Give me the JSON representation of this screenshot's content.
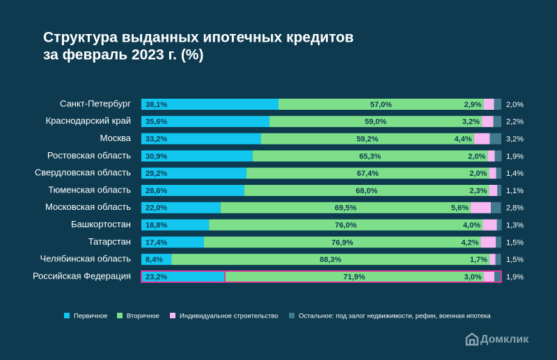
{
  "chart_data": {
    "type": "stacked-bar-horizontal",
    "title": [
      "Структура выданных ипотечных кредитов",
      "за февраль 2023 г. (%)"
    ],
    "categories": [
      "Санкт-Петербург",
      "Краснодарский край",
      "Москва",
      "Ростовская область",
      "Свердловская область",
      "Тюменская область",
      "Московская область",
      "Башкортостан",
      "Татарстан",
      "Челябинская область",
      "Российская Федерация"
    ],
    "xlim": [
      0,
      100
    ],
    "legend": "bottom",
    "series": [
      {
        "name": "Первичное",
        "color": "#12c6f0",
        "values": [
          38.1,
          35.6,
          33.2,
          30.9,
          29.2,
          28.6,
          22.0,
          18.8,
          17.4,
          8.4,
          23.2
        ],
        "value_labels": [
          "38,1%",
          "35,6%",
          "33,2%",
          "30,9%",
          "29,2%",
          "28,6%",
          "22,0%",
          "18,8%",
          "17,4%",
          "8,4%",
          "23,2%"
        ]
      },
      {
        "name": "Вторичное",
        "color": "#7ddf8a",
        "values": [
          57.0,
          59.0,
          59.2,
          65.3,
          67.4,
          68.0,
          69.5,
          76.0,
          76.9,
          88.3,
          71.9
        ],
        "value_labels": [
          "57,0%",
          "59,0%",
          "59,2%",
          "65,3%",
          "67,4%",
          "68,0%",
          "69,5%",
          "76,0%",
          "76,9%",
          "88,3%",
          "71,9%"
        ]
      },
      {
        "name": "Индивидуальное строительство",
        "color": "#f6b9f1",
        "values": [
          2.9,
          3.2,
          4.4,
          2.0,
          2.0,
          2.3,
          5.6,
          4.0,
          4.2,
          1.7,
          3.0
        ],
        "value_labels": [
          "2,9%",
          "3,2%",
          "4,4%",
          "2,0%",
          "2,0%",
          "2,3%",
          "5,6%",
          "4,0%",
          "4,2%",
          "1,7%",
          "3,0%"
        ]
      },
      {
        "name": "Остальное: под залог недвижимости, рефин, военная ипотека",
        "color": "#3f7a8e",
        "values": [
          2.0,
          2.2,
          3.2,
          1.9,
          1.4,
          1.1,
          2.8,
          1.3,
          1.5,
          1.5,
          1.9
        ],
        "value_labels": [
          "2,0%",
          "2,2%",
          "3,2%",
          "1,9%",
          "1,4%",
          "1,1%",
          "2,8%",
          "1,3%",
          "1,5%",
          "1,5%",
          "1,9%"
        ]
      }
    ]
  },
  "brand": "Домклик"
}
